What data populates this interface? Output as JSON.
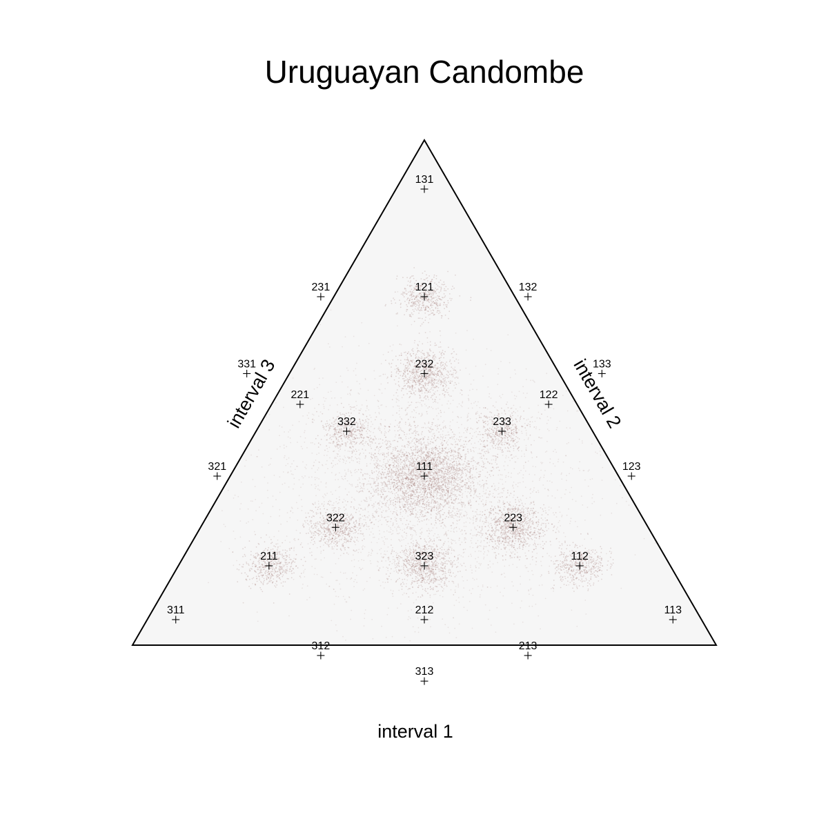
{
  "chart_data": {
    "type": "scatter",
    "subtype": "ternary-simplex",
    "title": "Uruguayan Candombe",
    "axis_labels": {
      "bottom": "interval 1",
      "right": "interval 2",
      "left": "interval 3"
    },
    "colors": {
      "triangle_fill": "#f6f6f6",
      "triangle_stroke": "#000000",
      "density_points": "#8b5a55",
      "markers": "#000000"
    },
    "reference_ratios": [
      {
        "label": "131",
        "i1": 1,
        "i2": 3,
        "i3": 1
      },
      {
        "label": "132",
        "i1": 1,
        "i2": 3,
        "i3": 2
      },
      {
        "label": "121",
        "i1": 1,
        "i2": 2,
        "i3": 1
      },
      {
        "label": "231",
        "i1": 2,
        "i2": 3,
        "i3": 1
      },
      {
        "label": "133",
        "i1": 1,
        "i2": 3,
        "i3": 3
      },
      {
        "label": "232",
        "i1": 2,
        "i2": 3,
        "i3": 2
      },
      {
        "label": "331",
        "i1": 3,
        "i2": 3,
        "i3": 1
      },
      {
        "label": "122",
        "i1": 1,
        "i2": 2,
        "i3": 2
      },
      {
        "label": "221",
        "i1": 2,
        "i2": 2,
        "i3": 1
      },
      {
        "label": "233",
        "i1": 2,
        "i2": 3,
        "i3": 3
      },
      {
        "label": "332",
        "i1": 3,
        "i2": 3,
        "i3": 2
      },
      {
        "label": "123",
        "i1": 1,
        "i2": 2,
        "i3": 3
      },
      {
        "label": "111",
        "i1": 1,
        "i2": 1,
        "i3": 1
      },
      {
        "label": "321",
        "i1": 3,
        "i2": 2,
        "i3": 1
      },
      {
        "label": "223",
        "i1": 2,
        "i2": 2,
        "i3": 3
      },
      {
        "label": "322",
        "i1": 3,
        "i2": 2,
        "i3": 2
      },
      {
        "label": "112",
        "i1": 1,
        "i2": 1,
        "i3": 2
      },
      {
        "label": "323",
        "i1": 3,
        "i2": 2,
        "i3": 3
      },
      {
        "label": "211",
        "i1": 2,
        "i2": 1,
        "i3": 1
      },
      {
        "label": "113",
        "i1": 1,
        "i2": 1,
        "i3": 3
      },
      {
        "label": "212",
        "i1": 2,
        "i2": 1,
        "i3": 2
      },
      {
        "label": "311",
        "i1": 3,
        "i2": 1,
        "i3": 1
      },
      {
        "label": "213",
        "i1": 2,
        "i2": 1,
        "i3": 3
      },
      {
        "label": "312",
        "i1": 3,
        "i2": 1,
        "i3": 2
      },
      {
        "label": "313",
        "i1": 3,
        "i2": 1,
        "i3": 3
      }
    ],
    "density_clusters": [
      {
        "i1": 1,
        "i2": 1,
        "i3": 1,
        "weight": 6
      },
      {
        "i1": 2,
        "i2": 3,
        "i3": 2,
        "weight": 2
      },
      {
        "i1": 1,
        "i2": 2,
        "i3": 1,
        "weight": 1.2
      },
      {
        "i1": 2,
        "i2": 2,
        "i3": 3,
        "weight": 2.2
      },
      {
        "i1": 3,
        "i2": 2,
        "i3": 3,
        "weight": 2
      },
      {
        "i1": 3,
        "i2": 2,
        "i3": 2,
        "weight": 1.4
      },
      {
        "i1": 2,
        "i2": 1,
        "i3": 1,
        "weight": 1.2
      },
      {
        "i1": 1,
        "i2": 1,
        "i3": 2,
        "weight": 1.2
      },
      {
        "i1": 2,
        "i2": 3,
        "i3": 3,
        "weight": 1
      },
      {
        "i1": 3,
        "i2": 3,
        "i3": 2,
        "weight": 1
      }
    ]
  }
}
